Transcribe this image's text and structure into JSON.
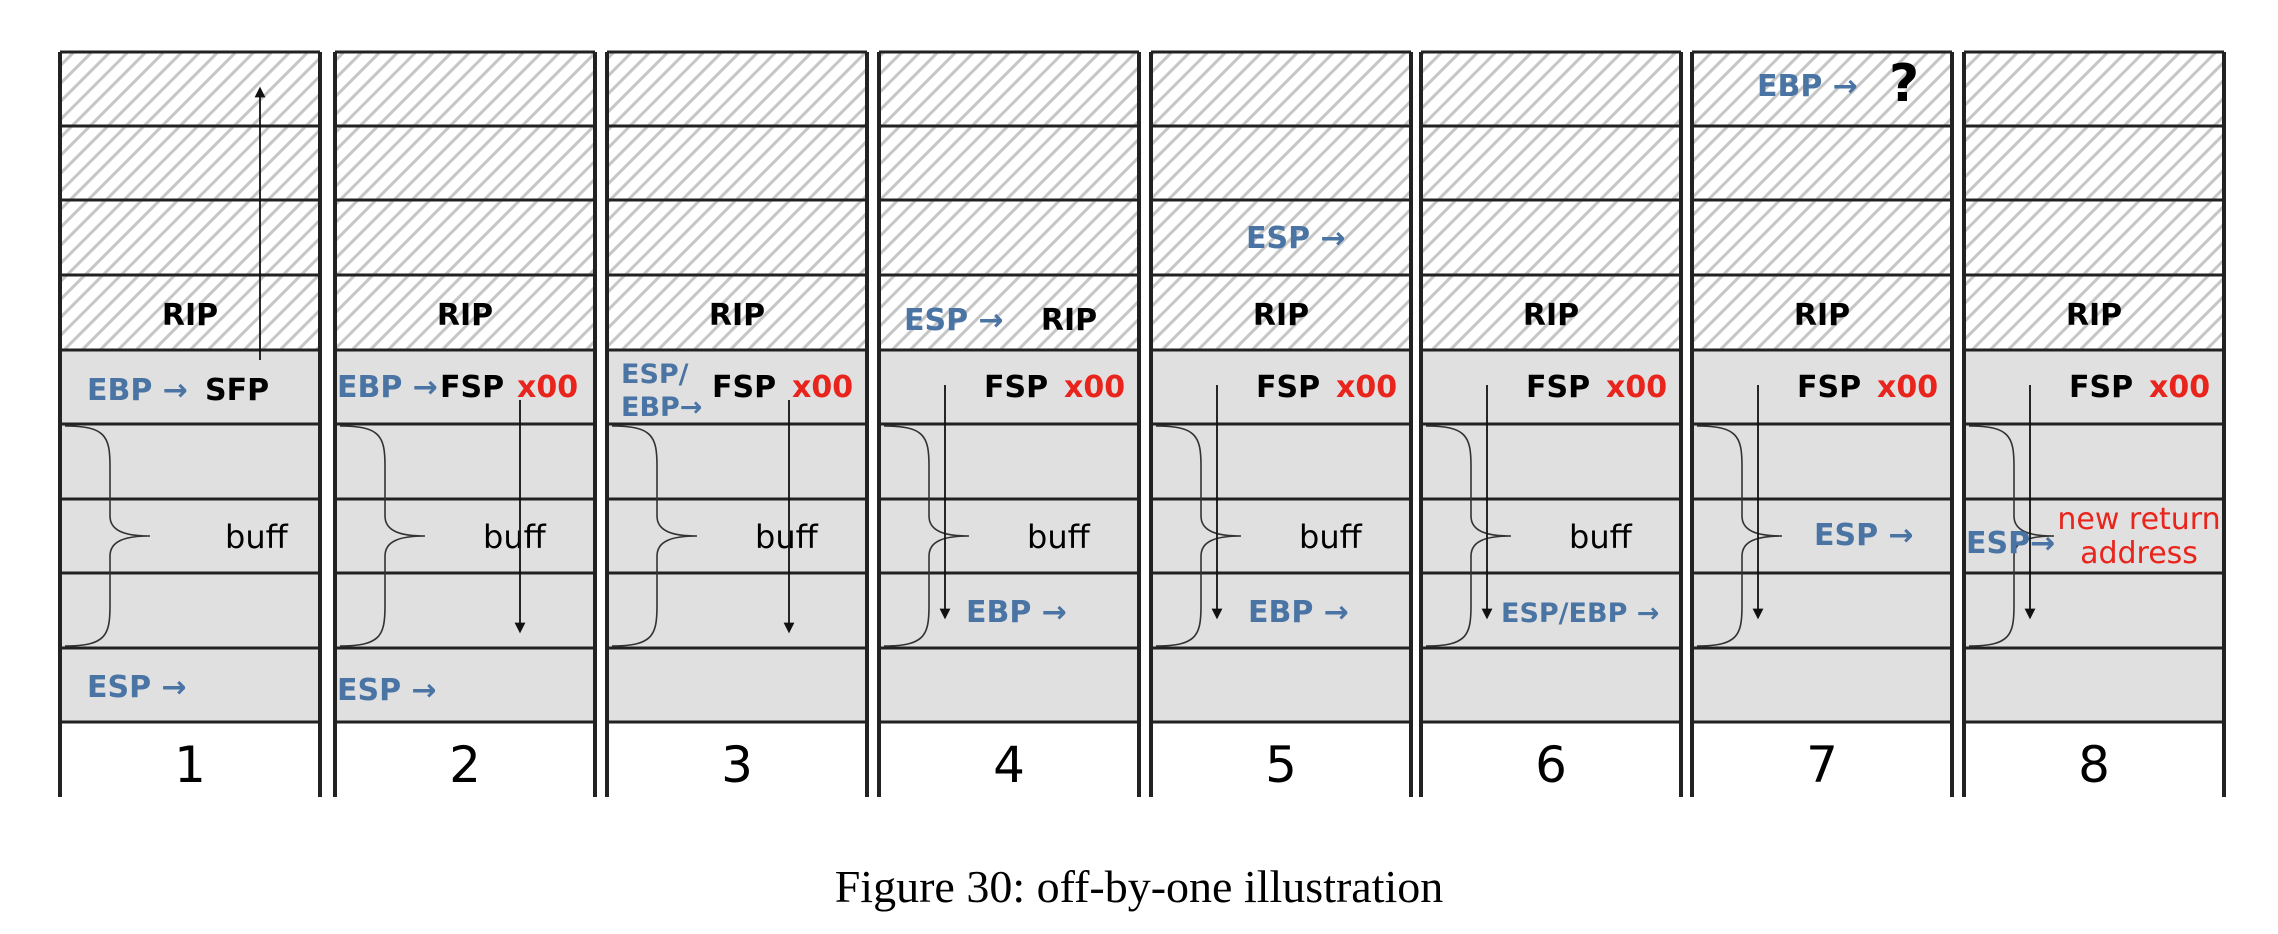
{
  "caption": "Figure 30: off-by-one illustration",
  "colors": {
    "blue": "#4a74a4",
    "red": "#e8241c",
    "grey": "#e0e0e0",
    "hatch": "#c6c6c6",
    "line": "#222222"
  },
  "labels": {
    "rip": "RIP",
    "sfp": "SFP",
    "fsp": "FSP",
    "x00": "x00",
    "buff": "buff",
    "ebp": "EBP",
    "esp": "ESP",
    "esp_slash": "ESP/",
    "ebp_arrow": "EBP→",
    "esp_ebp": "ESP/EBP",
    "question": "?",
    "new_return_1": "new return",
    "new_return_2": "address"
  },
  "columns": [
    {
      "number": "1"
    },
    {
      "number": "2"
    },
    {
      "number": "3"
    },
    {
      "number": "4"
    },
    {
      "number": "5"
    },
    {
      "number": "6"
    },
    {
      "number": "7"
    },
    {
      "number": "8"
    }
  ]
}
